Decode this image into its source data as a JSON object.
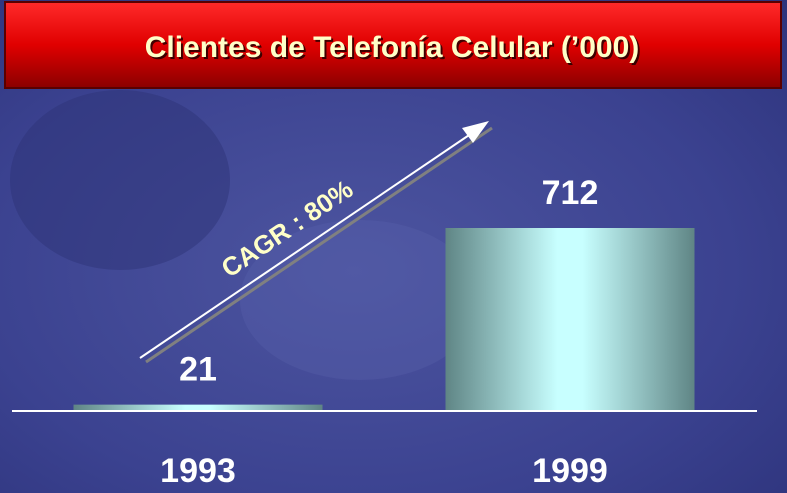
{
  "chart_data": {
    "type": "bar",
    "title": "Clientes de Telefonía Celular (’000)",
    "categories": [
      "1993",
      "1999"
    ],
    "values": [
      21,
      712
    ],
    "annotation": "CAGR :  80%"
  }
}
